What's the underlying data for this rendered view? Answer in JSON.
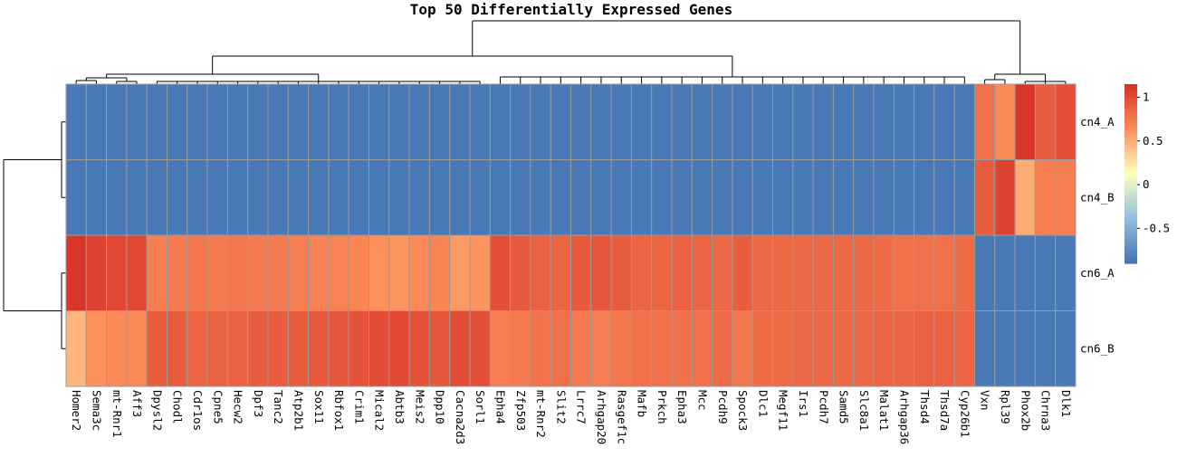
{
  "chart_data": {
    "type": "heatmap",
    "title": "Top 50 Differentially Expressed Genes",
    "rows": [
      "cn4_A",
      "cn4_B",
      "cn6_A",
      "cn6_B"
    ],
    "columns": [
      "Homer2",
      "Sema3c",
      "mt-Rnr1",
      "Aff3",
      "Dpysl2",
      "Chodl",
      "Cdr1os",
      "Cpne5",
      "Hecw2",
      "Dpf3",
      "Tanc2",
      "Atp2b1",
      "Sox11",
      "Rbfox1",
      "Crim1",
      "Mical2",
      "Abtb3",
      "Meis2",
      "Dpp10",
      "Cacna2d3",
      "Sorl1",
      "Epha4",
      "Zfp503",
      "mt-Rnr2",
      "Slit2",
      "Lrrc7",
      "Arhgap20",
      "Rasgef1c",
      "Mafb",
      "Prkch",
      "Epha3",
      "Mcc",
      "Pcdh9",
      "Spock3",
      "Dlc1",
      "Megf11",
      "Irs1",
      "Pcdh7",
      "Samd5",
      "Slc8a1",
      "Malat1",
      "Arhgap36",
      "Thsd4",
      "Thsd7a",
      "Cyp26b1",
      "Vxn",
      "Rpl39",
      "Phox2b",
      "Chrna3",
      "Dlk1"
    ],
    "values": [
      [
        -0.87,
        -0.87,
        -0.87,
        -0.87,
        -0.87,
        -0.87,
        -0.87,
        -0.87,
        -0.87,
        -0.87,
        -0.87,
        -0.87,
        -0.87,
        -0.87,
        -0.87,
        -0.87,
        -0.87,
        -0.87,
        -0.87,
        -0.87,
        -0.87,
        -0.87,
        -0.87,
        -0.87,
        -0.87,
        -0.87,
        -0.87,
        -0.87,
        -0.87,
        -0.87,
        -0.87,
        -0.87,
        -0.87,
        -0.87,
        -0.87,
        -0.87,
        -0.87,
        -0.87,
        -0.87,
        -0.87,
        -0.87,
        -0.87,
        -0.87,
        -0.87,
        -0.87,
        0.8,
        0.65,
        1.12,
        0.9,
        0.98
      ],
      [
        -0.87,
        -0.87,
        -0.87,
        -0.87,
        -0.87,
        -0.87,
        -0.87,
        -0.87,
        -0.87,
        -0.87,
        -0.87,
        -0.87,
        -0.87,
        -0.87,
        -0.87,
        -0.87,
        -0.87,
        -0.87,
        -0.87,
        -0.87,
        -0.87,
        -0.87,
        -0.87,
        -0.87,
        -0.87,
        -0.87,
        -0.87,
        -0.87,
        -0.87,
        -0.87,
        -0.87,
        -0.87,
        -0.87,
        -0.87,
        -0.87,
        -0.87,
        -0.87,
        -0.87,
        -0.87,
        -0.87,
        -0.87,
        -0.87,
        -0.87,
        -0.87,
        -0.87,
        0.9,
        1.05,
        0.5,
        0.72,
        0.72
      ],
      [
        1.12,
        1.05,
        1.02,
        1.02,
        0.72,
        0.74,
        0.76,
        0.74,
        0.76,
        0.74,
        0.74,
        0.72,
        0.7,
        0.7,
        0.68,
        0.62,
        0.6,
        0.66,
        0.68,
        0.58,
        0.6,
        0.98,
        0.92,
        0.88,
        0.86,
        0.92,
        0.94,
        0.9,
        0.86,
        0.86,
        0.88,
        0.86,
        0.84,
        0.9,
        0.84,
        0.84,
        0.84,
        0.84,
        0.84,
        0.84,
        0.82,
        0.8,
        0.8,
        0.8,
        0.82,
        -0.87,
        -0.87,
        -0.87,
        -0.87,
        -0.87
      ],
      [
        0.45,
        0.62,
        0.66,
        0.66,
        0.9,
        0.9,
        0.86,
        0.88,
        0.88,
        0.9,
        0.9,
        0.9,
        0.92,
        0.94,
        0.96,
        1.0,
        1.02,
        0.96,
        0.94,
        1.0,
        0.98,
        0.72,
        0.74,
        0.78,
        0.8,
        0.74,
        0.72,
        0.76,
        0.8,
        0.8,
        0.78,
        0.8,
        0.82,
        0.76,
        0.82,
        0.82,
        0.84,
        0.84,
        0.84,
        0.84,
        0.86,
        0.86,
        0.88,
        0.88,
        0.86,
        -0.87,
        -0.87,
        -0.87,
        -0.87,
        -0.87
      ]
    ],
    "colorbar": {
      "ticks": [
        "1",
        "0.5",
        "0",
        "-0.5"
      ],
      "tick_values": [
        1,
        0.5,
        0,
        -0.5
      ],
      "range": [
        -0.9,
        1.15
      ]
    },
    "colors": {
      "low": "#4575b4",
      "midlow": "#91bfdb",
      "mid": "#ffffbf",
      "midhigh": "#fc8d59",
      "high": "#d73027"
    }
  }
}
